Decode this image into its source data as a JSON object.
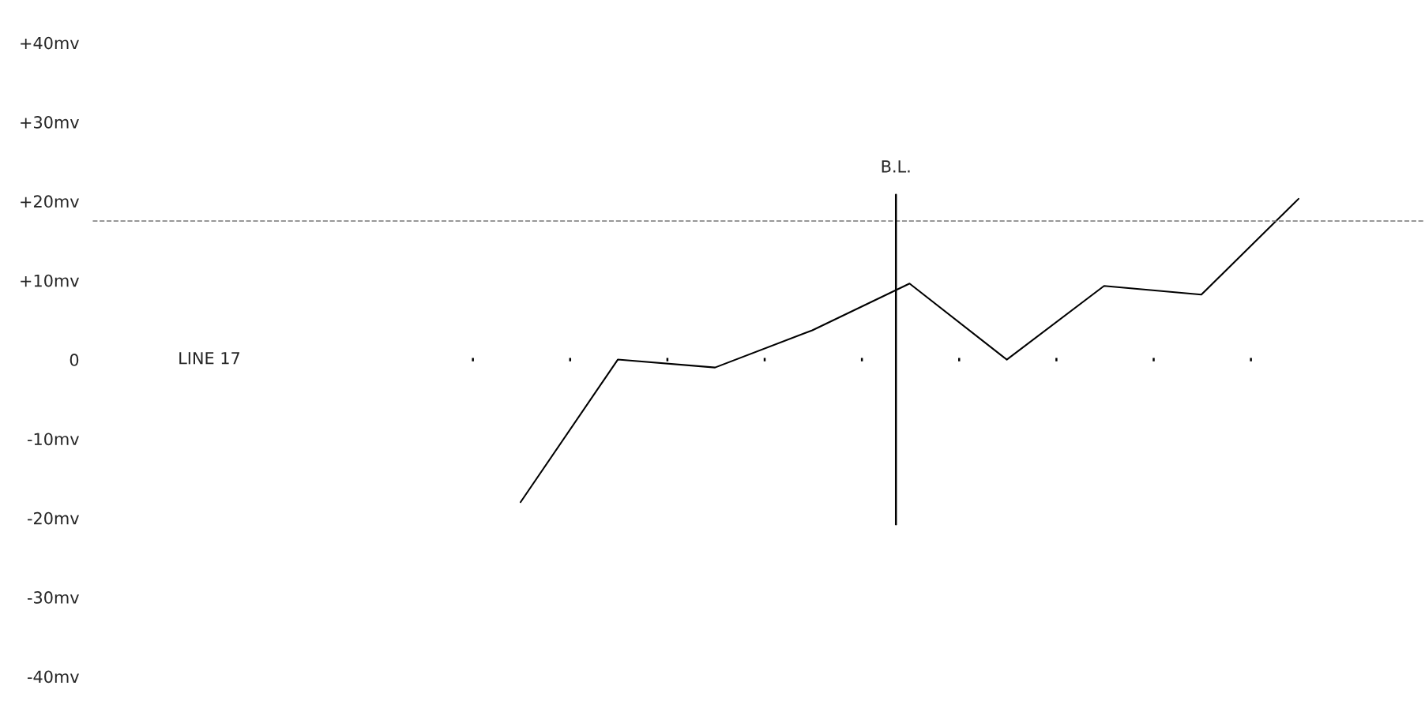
{
  "chart_data": {
    "type": "line",
    "categories": [
      null,
      null,
      null,
      null,
      null,
      null,
      null,
      null,
      null
    ],
    "series": [
      {
        "color": "#000000",
        "values": [
          -18,
          0,
          -1,
          3.7,
          9.6,
          0,
          9.3,
          8.2,
          20.3
        ]
      }
    ],
    "ylim": [
      -40,
      40
    ],
    "yticks": [
      {
        "value": 40,
        "label": "+40mv"
      },
      {
        "value": 30,
        "label": "+30mv"
      },
      {
        "value": 20,
        "label": "+20mv"
      },
      {
        "value": 10,
        "label": "+10mv"
      },
      {
        "value": 0,
        "label": "0"
      },
      {
        "value": -10,
        "label": "-10mv"
      },
      {
        "value": -20,
        "label": "-20mv"
      },
      {
        "value": -30,
        "label": "-30mv"
      },
      {
        "value": -40,
        "label": "-40mv"
      }
    ],
    "grid": false,
    "marker": "none",
    "ref_lines": [
      {
        "axis": "y",
        "value": 17.5,
        "color": "#777777",
        "line_style": "dashed"
      },
      {
        "axis": "y",
        "value": 0,
        "color": "#000000",
        "line_style": "dotted"
      }
    ],
    "annotations": [
      "B.L.",
      "LINE 17"
    ]
  }
}
